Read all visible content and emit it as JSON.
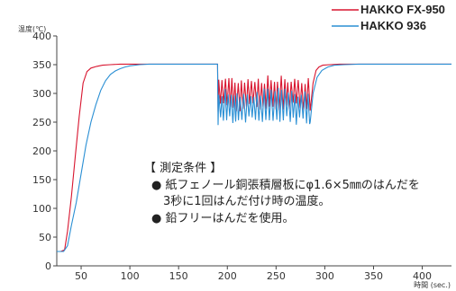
{
  "chart_data": {
    "type": "line",
    "ylabel": "温度(℃)",
    "xlabel": "時間 (sec.)",
    "ylim": [
      0,
      400
    ],
    "xlim": [
      25,
      430
    ],
    "yticks": [
      0,
      50,
      100,
      150,
      200,
      250,
      300,
      350,
      400
    ],
    "xticks": [
      50,
      100,
      150,
      200,
      250,
      300,
      350,
      400
    ],
    "grid": false,
    "legend_position": "top-right",
    "series": [
      {
        "name": "HAKKO FX-950",
        "color": "#d8152f",
        "x": [
          25,
          29,
          33,
          36,
          40,
          44,
          48,
          52,
          56,
          60,
          66,
          72,
          80,
          90,
          100,
          120,
          140,
          160,
          180,
          190
        ],
        "y": [
          25,
          25,
          28,
          60,
          120,
          190,
          260,
          318,
          338,
          344,
          347,
          349,
          350,
          351,
          351,
          351,
          351,
          351,
          351,
          351
        ],
        "oscillation": {
          "x_start": 190,
          "x_end": 285,
          "low": 268,
          "high": 332
        },
        "recovery": {
          "x": [
            285,
            288,
            291,
            294,
            298,
            305,
            315,
            330,
            360,
            400,
            430
          ],
          "y": [
            270,
            318,
            340,
            346,
            349,
            350,
            351,
            351,
            351,
            351,
            351
          ]
        }
      },
      {
        "name": "HAKKO 936",
        "color": "#2a8fd4",
        "x": [
          25,
          32,
          36,
          40,
          45,
          50,
          55,
          60,
          65,
          70,
          75,
          80,
          85,
          90,
          95,
          100,
          110,
          120,
          140,
          160,
          180,
          190
        ],
        "y": [
          25,
          25,
          35,
          70,
          110,
          160,
          210,
          250,
          280,
          305,
          322,
          333,
          339,
          343,
          346,
          348,
          350,
          351,
          351,
          351,
          351,
          351
        ],
        "oscillation": {
          "x_start": 190,
          "x_end": 285,
          "low": 245,
          "high": 310
        },
        "recovery": {
          "x": [
            285,
            288,
            292,
            297,
            303,
            310,
            320,
            335,
            360,
            400,
            430
          ],
          "y": [
            250,
            300,
            328,
            340,
            346,
            349,
            350,
            351,
            351,
            351,
            351
          ]
        }
      }
    ]
  },
  "annotation": {
    "title": "【 測定条件 】",
    "bullet": "●",
    "line1": "紙フェノール銅張積層板にφ1.6×5㎜のはんだを",
    "line2": "3秒に1回はんだ付け時の温度。",
    "line3": "鉛フリーはんだを使用。"
  }
}
